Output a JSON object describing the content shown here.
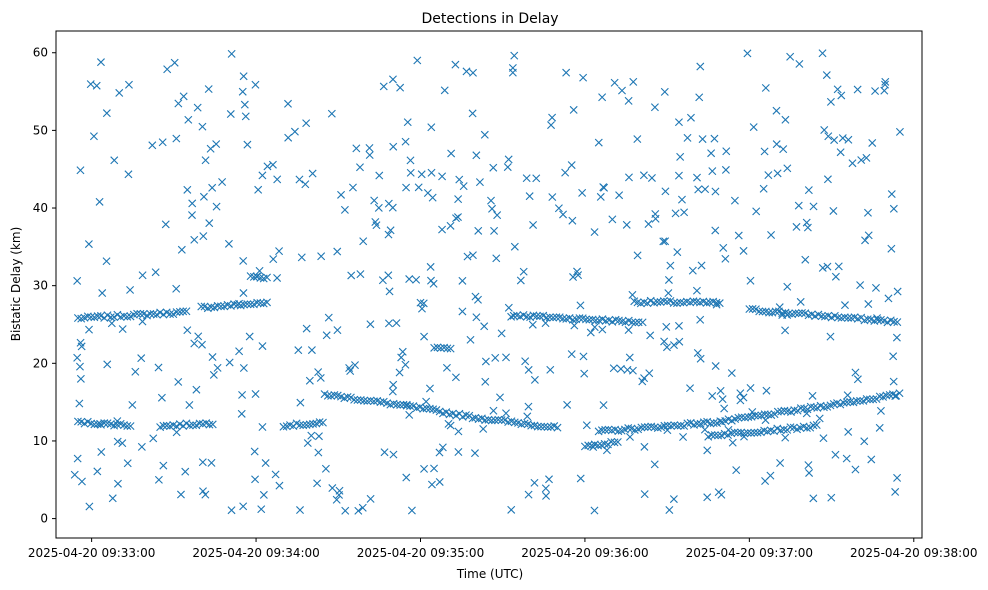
{
  "chart_data": {
    "type": "scatter",
    "title": "Detections in Delay",
    "xlabel": "Time (UTC)",
    "ylabel": "Bistatic Delay (km)",
    "marker": "x",
    "color": "#1f77b4",
    "xlim": [
      "2025-04-20T09:32:47",
      "2025-04-20T09:38:03"
    ],
    "ylim": [
      -2.5,
      62.8
    ],
    "xticks": [
      {
        "t": "2025-04-20T09:33:00",
        "label": "2025-04-20 09:33:00"
      },
      {
        "t": "2025-04-20T09:34:00",
        "label": "2025-04-20 09:34:00"
      },
      {
        "t": "2025-04-20T09:35:00",
        "label": "2025-04-20 09:35:00"
      },
      {
        "t": "2025-04-20T09:36:00",
        "label": "2025-04-20 09:36:00"
      },
      {
        "t": "2025-04-20T09:37:00",
        "label": "2025-04-20 09:37:00"
      },
      {
        "t": "2025-04-20T09:38:00",
        "label": "2025-04-20 09:38:00"
      }
    ],
    "yticks": [
      0,
      10,
      20,
      30,
      40,
      50,
      60
    ],
    "grid": false,
    "legend": "none",
    "start_time": "2025-04-20T09:32:53",
    "end_time": "2025-04-20T09:37:55",
    "tracks": [
      {
        "points": [
          [
            "2025-04-20T09:32:55",
            25.8
          ],
          [
            "2025-04-20T09:33:35",
            26.6
          ]
        ]
      },
      {
        "points": [
          [
            "2025-04-20T09:33:40",
            27.2
          ],
          [
            "2025-04-20T09:34:05",
            27.8
          ]
        ]
      },
      {
        "points": [
          [
            "2025-04-20T09:33:58",
            31.2
          ],
          [
            "2025-04-20T09:34:05",
            31.0
          ]
        ]
      },
      {
        "points": [
          [
            "2025-04-20T09:35:00",
            27.8
          ],
          [
            "2025-04-20T09:35:02",
            27.7
          ]
        ]
      },
      {
        "points": [
          [
            "2025-04-20T09:35:34",
            26.2
          ],
          [
            "2025-04-20T09:36:20",
            25.3
          ]
        ]
      },
      {
        "points": [
          [
            "2025-04-20T09:36:18",
            27.9
          ],
          [
            "2025-04-20T09:36:50",
            27.8
          ]
        ]
      },
      {
        "points": [
          [
            "2025-04-20T09:37:00",
            26.9
          ],
          [
            "2025-04-20T09:37:55",
            25.3
          ]
        ]
      },
      {
        "points": [
          [
            "2025-04-20T09:32:55",
            12.4
          ],
          [
            "2025-04-20T09:33:15",
            12.0
          ]
        ]
      },
      {
        "points": [
          [
            "2025-04-20T09:33:25",
            11.9
          ],
          [
            "2025-04-20T09:33:45",
            12.3
          ]
        ]
      },
      {
        "points": [
          [
            "2025-04-20T09:34:10",
            12.0
          ],
          [
            "2025-04-20T09:34:25",
            12.3
          ]
        ]
      },
      {
        "points": [
          [
            "2025-04-20T09:34:25",
            16.0
          ],
          [
            "2025-04-20T09:34:55",
            14.5
          ],
          [
            "2025-04-20T09:35:20",
            13.0
          ],
          [
            "2025-04-20T09:35:50",
            11.7
          ]
        ]
      },
      {
        "points": [
          [
            "2025-04-20T09:36:05",
            11.2
          ],
          [
            "2025-04-20T09:36:50",
            12.5
          ],
          [
            "2025-04-20T09:37:55",
            16.0
          ]
        ]
      },
      {
        "points": [
          [
            "2025-04-20T09:36:00",
            9.4
          ],
          [
            "2025-04-20T09:36:12",
            9.8
          ]
        ]
      },
      {
        "points": [
          [
            "2025-04-20T09:36:45",
            10.7
          ],
          [
            "2025-04-20T09:37:25",
            11.9
          ]
        ]
      },
      {
        "points": [
          [
            "2025-04-20T09:35:05",
            22.0
          ],
          [
            "2025-04-20T09:35:12",
            21.8
          ]
        ]
      }
    ],
    "noise_count": 560
  }
}
